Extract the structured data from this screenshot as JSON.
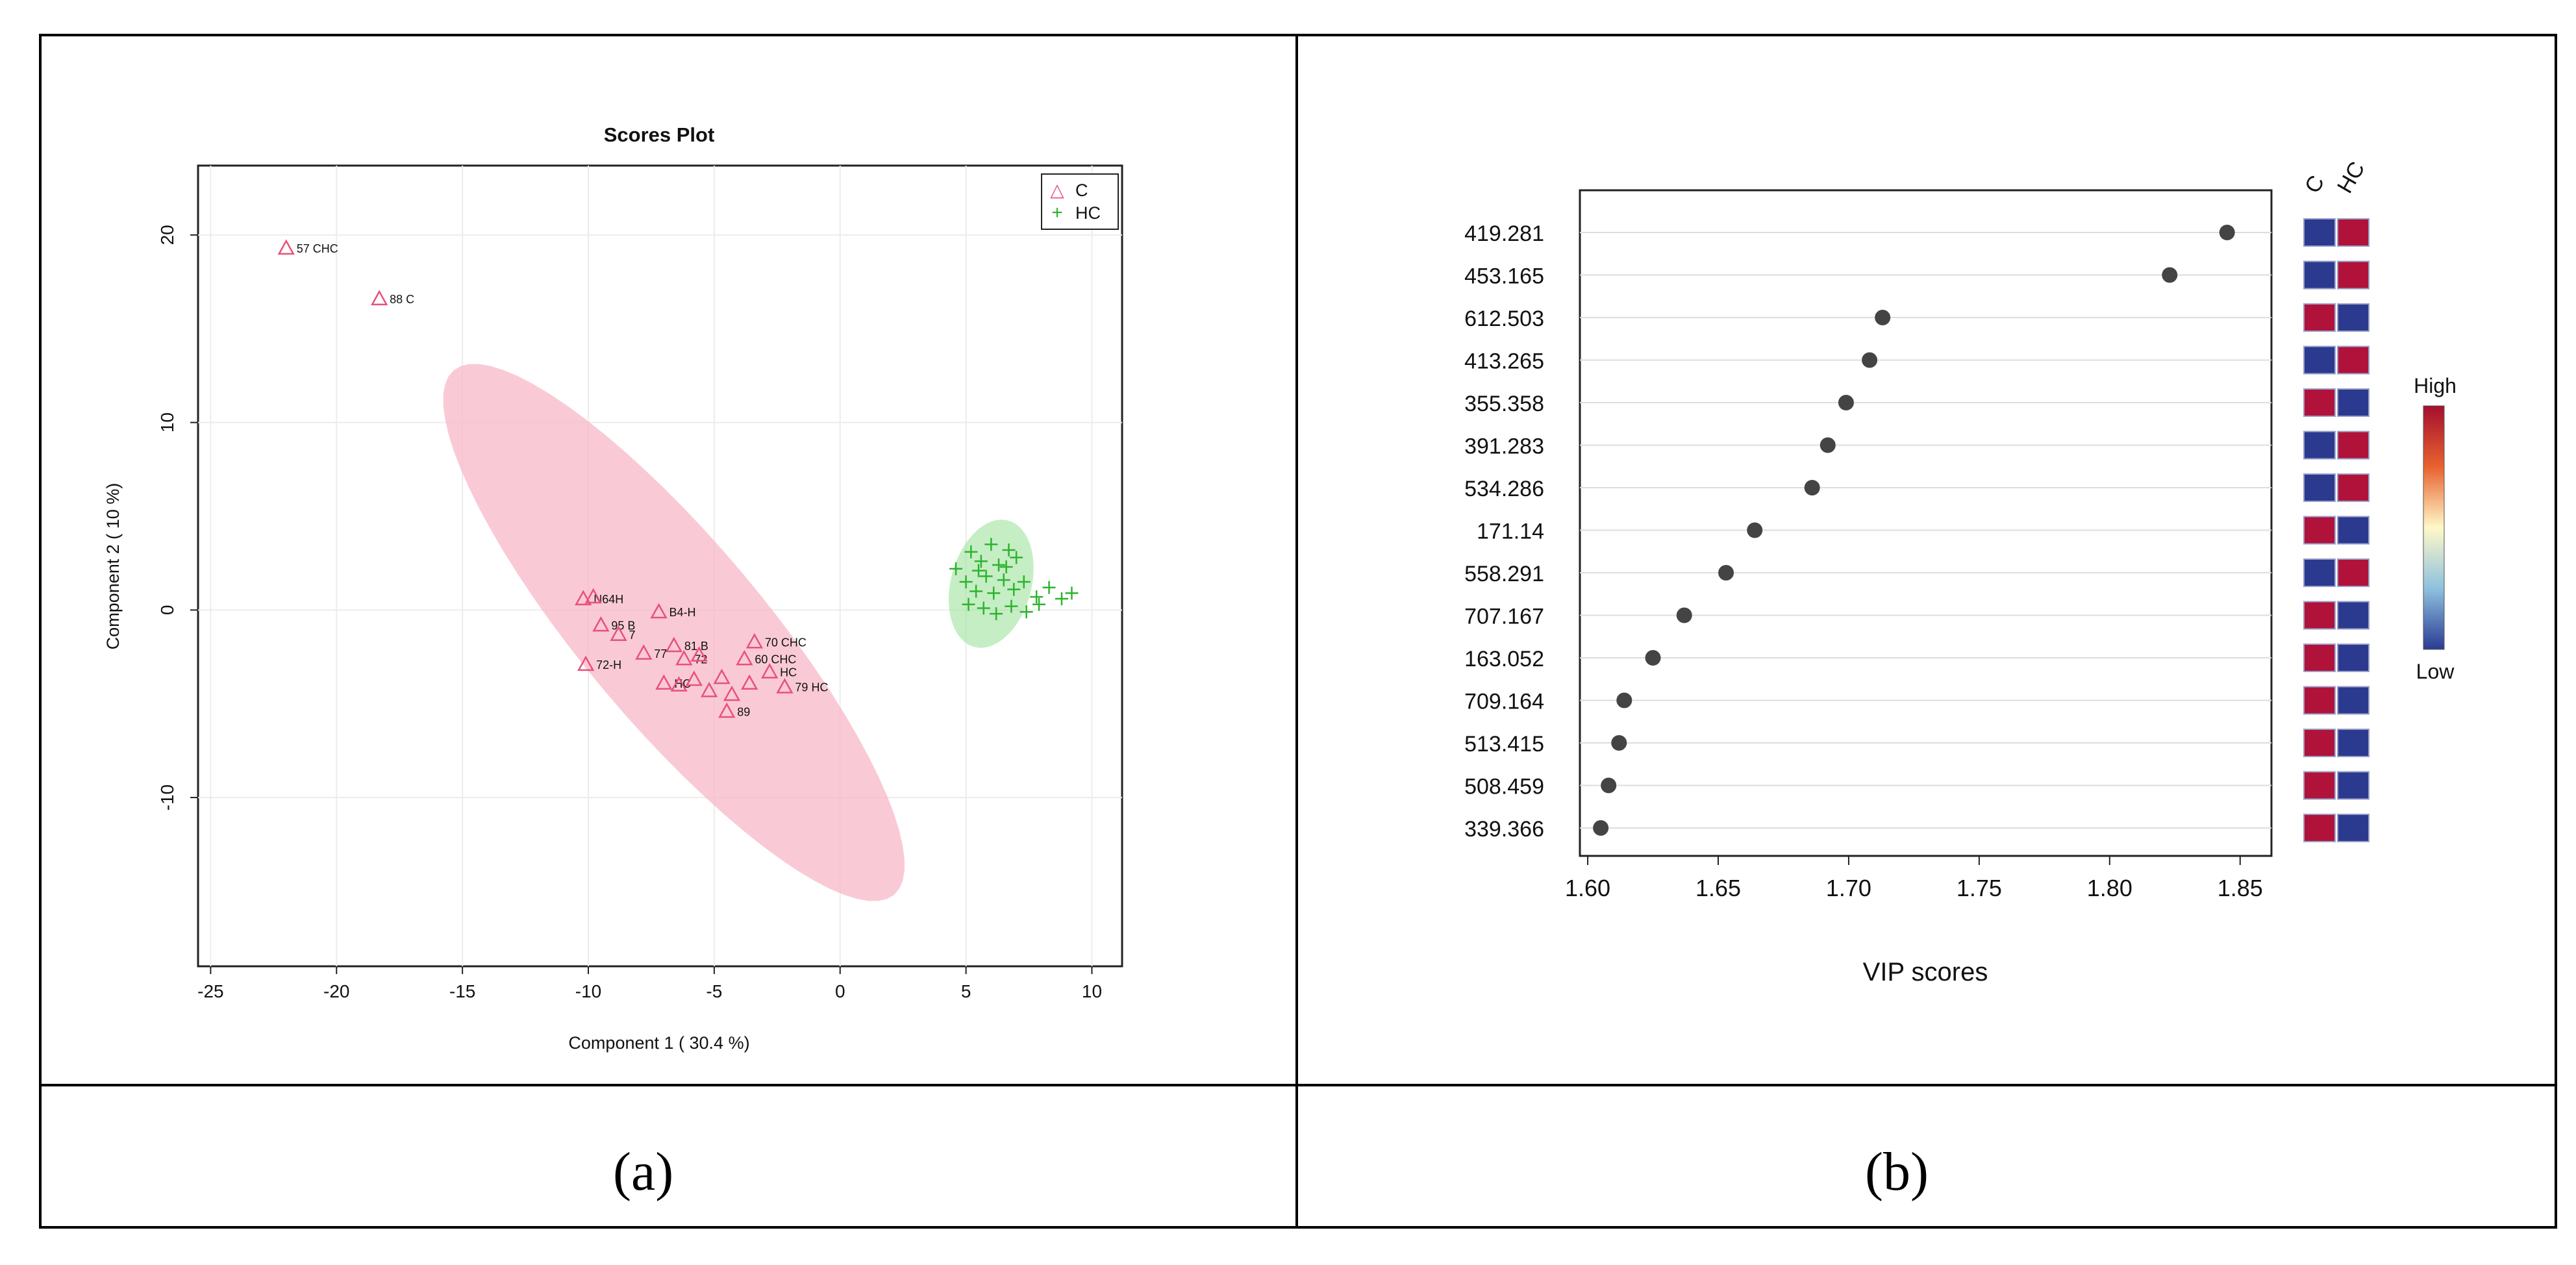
{
  "colors": {
    "class_c": "#e8507a",
    "class_hc": "#2db32d",
    "ellipse_c": "#f7b8c8",
    "ellipse_hc": "#9fe39f",
    "dot": "#444444",
    "heat_high": "#b0123a",
    "heat_low": "#2b3a8f"
  },
  "captions": {
    "a": "(a)",
    "b": "(b)"
  },
  "chart_data": [
    {
      "type": "scatter",
      "title": "Scores Plot",
      "xlabel": "Component 1 ( 30.4 %)",
      "ylabel": "Component 2 ( 10 %)",
      "xlim": [
        -25.5,
        11.2
      ],
      "ylim": [
        -19,
        23.7
      ],
      "xticks": [
        -25,
        -20,
        -15,
        -10,
        -5,
        0,
        5,
        10
      ],
      "yticks": [
        -10,
        0,
        10,
        20
      ],
      "legend": {
        "position": "top-right",
        "entries": [
          {
            "symbol": "△",
            "label": "C"
          },
          {
            "symbol": "+",
            "label": "HC"
          }
        ]
      },
      "series": [
        {
          "name": "C",
          "marker": "triangle",
          "points": [
            {
              "x": -22,
              "y": 19.3,
              "label": "57 CHC"
            },
            {
              "x": -18.3,
              "y": 16.6,
              "label": "88 C"
            },
            {
              "x": -10.2,
              "y": 0.6,
              "label": "N64H"
            },
            {
              "x": -9.8,
              "y": 0.7,
              "label": ""
            },
            {
              "x": -9.5,
              "y": -0.8,
              "label": "95 B"
            },
            {
              "x": -8.8,
              "y": -1.3,
              "label": "7"
            },
            {
              "x": -7.2,
              "y": -0.1,
              "label": "B4-H"
            },
            {
              "x": -7.8,
              "y": -2.3,
              "label": "77"
            },
            {
              "x": -10.1,
              "y": -2.9,
              "label": "72-H"
            },
            {
              "x": -6.6,
              "y": -1.9,
              "label": "81 B"
            },
            {
              "x": -6.2,
              "y": -2.6,
              "label": "72"
            },
            {
              "x": -5.6,
              "y": -2.4,
              "label": ""
            },
            {
              "x": -3.4,
              "y": -1.7,
              "label": "70 CHC"
            },
            {
              "x": -3.8,
              "y": -2.6,
              "label": "60 CHC"
            },
            {
              "x": -7.0,
              "y": -3.9,
              "label": "HC"
            },
            {
              "x": -6.4,
              "y": -4.0,
              "label": ""
            },
            {
              "x": -5.8,
              "y": -3.7,
              "label": ""
            },
            {
              "x": -5.2,
              "y": -4.3,
              "label": ""
            },
            {
              "x": -4.7,
              "y": -3.6,
              "label": ""
            },
            {
              "x": -4.3,
              "y": -4.5,
              "label": ""
            },
            {
              "x": -3.6,
              "y": -3.9,
              "label": ""
            },
            {
              "x": -2.8,
              "y": -3.3,
              "label": "HC"
            },
            {
              "x": -2.2,
              "y": -4.1,
              "label": "79 HC"
            },
            {
              "x": -4.5,
              "y": -5.4,
              "label": "89"
            }
          ]
        },
        {
          "name": "HC",
          "marker": "plus",
          "points": [
            {
              "x": 5.2,
              "y": 3.1
            },
            {
              "x": 5.6,
              "y": 2.6
            },
            {
              "x": 6.0,
              "y": 3.5
            },
            {
              "x": 6.3,
              "y": 2.4
            },
            {
              "x": 6.7,
              "y": 3.2
            },
            {
              "x": 7.0,
              "y": 2.8
            },
            {
              "x": 4.6,
              "y": 2.2
            },
            {
              "x": 5.0,
              "y": 1.5
            },
            {
              "x": 5.4,
              "y": 1.0
            },
            {
              "x": 5.8,
              "y": 1.8
            },
            {
              "x": 6.1,
              "y": 0.9
            },
            {
              "x": 6.5,
              "y": 1.6
            },
            {
              "x": 6.9,
              "y": 1.1
            },
            {
              "x": 7.3,
              "y": 1.5
            },
            {
              "x": 7.8,
              "y": 0.7
            },
            {
              "x": 8.3,
              "y": 1.2
            },
            {
              "x": 8.8,
              "y": 0.6
            },
            {
              "x": 9.2,
              "y": 0.9
            },
            {
              "x": 5.1,
              "y": 0.3
            },
            {
              "x": 5.7,
              "y": 0.1
            },
            {
              "x": 6.2,
              "y": -0.2
            },
            {
              "x": 6.8,
              "y": 0.2
            },
            {
              "x": 7.4,
              "y": -0.1
            },
            {
              "x": 7.9,
              "y": 0.3
            },
            {
              "x": 5.5,
              "y": 2.1
            },
            {
              "x": 6.6,
              "y": 2.3
            }
          ]
        }
      ],
      "ellipses": [
        {
          "group": "C",
          "cx": -6.6,
          "cy": -1.2,
          "semi_major": 13.6,
          "semi_minor": 3.6,
          "angle_deg": -50
        },
        {
          "group": "HC",
          "cx": 6.0,
          "cy": 1.4,
          "semi_major": 2.6,
          "semi_minor": 1.6,
          "angle_deg": 75
        }
      ]
    },
    {
      "type": "dot",
      "title": "",
      "xlabel": "VIP scores",
      "ylabel": "",
      "xlim": [
        1.597,
        1.862
      ],
      "xticks": [
        1.6,
        1.65,
        1.7,
        1.75,
        1.8,
        1.85
      ],
      "heatmap_columns": [
        "C",
        "HC"
      ],
      "color_key": {
        "high_label": "High",
        "low_label": "Low"
      },
      "features": [
        {
          "label": "419.281",
          "value": 1.845,
          "C": "low",
          "HC": "high"
        },
        {
          "label": "453.165",
          "value": 1.823,
          "C": "low",
          "HC": "high"
        },
        {
          "label": "612.503",
          "value": 1.713,
          "C": "high",
          "HC": "low"
        },
        {
          "label": "413.265",
          "value": 1.708,
          "C": "low",
          "HC": "high"
        },
        {
          "label": "355.358",
          "value": 1.699,
          "C": "high",
          "HC": "low"
        },
        {
          "label": "391.283",
          "value": 1.692,
          "C": "low",
          "HC": "high"
        },
        {
          "label": "534.286",
          "value": 1.686,
          "C": "low",
          "HC": "high"
        },
        {
          "label": "171.14",
          "value": 1.664,
          "C": "high",
          "HC": "low"
        },
        {
          "label": "558.291",
          "value": 1.653,
          "C": "low",
          "HC": "high"
        },
        {
          "label": "707.167",
          "value": 1.637,
          "C": "high",
          "HC": "low"
        },
        {
          "label": "163.052",
          "value": 1.625,
          "C": "high",
          "HC": "low"
        },
        {
          "label": "709.164",
          "value": 1.614,
          "C": "high",
          "HC": "low"
        },
        {
          "label": "513.415",
          "value": 1.612,
          "C": "high",
          "HC": "low"
        },
        {
          "label": "508.459",
          "value": 1.608,
          "C": "high",
          "HC": "low"
        },
        {
          "label": "339.366",
          "value": 1.605,
          "C": "high",
          "HC": "low"
        }
      ]
    }
  ]
}
